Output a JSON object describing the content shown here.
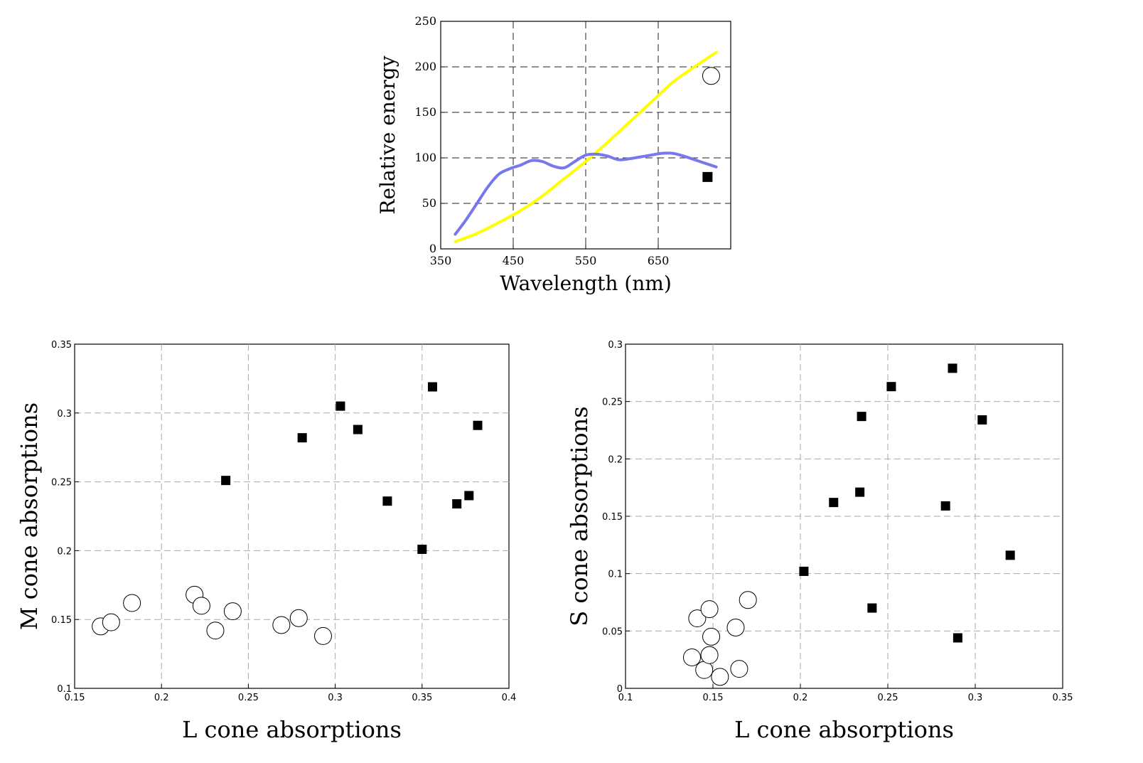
{
  "chart_data": [
    {
      "type": "line",
      "xlabel": "Wavelength (nm)",
      "ylabel": "Relative energy",
      "xlim": [
        350,
        750
      ],
      "ylim": [
        0,
        250
      ],
      "xticks": [
        "350",
        "450",
        "550",
        "650"
      ],
      "xtick_values": [
        350,
        450,
        550,
        650
      ],
      "yticks": [
        "0",
        "50",
        "100",
        "150",
        "200",
        "250"
      ],
      "ytick_values": [
        0,
        50,
        100,
        150,
        200,
        250
      ],
      "grid": true,
      "series": [
        {
          "color": "#ffff00",
          "x": [
            370,
            400,
            430,
            460,
            490,
            520,
            550,
            580,
            610,
            640,
            670,
            700,
            730
          ],
          "values": [
            8,
            17,
            29,
            42,
            58,
            77,
            96,
            117,
            139,
            161,
            183,
            200,
            216
          ]
        },
        {
          "color": "#7777ee",
          "x": [
            370,
            385,
            400,
            415,
            430,
            445,
            460,
            475,
            490,
            505,
            520,
            535,
            550,
            565,
            580,
            595,
            610,
            625,
            640,
            655,
            670,
            685,
            700,
            715,
            730
          ],
          "values": [
            16,
            32,
            50,
            68,
            82,
            88,
            92,
            97,
            96,
            91,
            89,
            96,
            103,
            104,
            102,
            98,
            99,
            101,
            103,
            105,
            105,
            102,
            98,
            94,
            90
          ]
        }
      ],
      "markers": [
        {
          "shape": "circle",
          "x": 723,
          "y": 190
        },
        {
          "shape": "square",
          "x": 718,
          "y": 79
        }
      ]
    },
    {
      "type": "scatter",
      "xlabel": "L cone absorptions",
      "ylabel": "M cone absorptions",
      "xlim": [
        0.15,
        0.4
      ],
      "ylim": [
        0.1,
        0.35
      ],
      "xticks": [
        "0.15",
        "0.2",
        "0.25",
        "0.3",
        "0.35",
        "0.4"
      ],
      "xtick_values": [
        0.15,
        0.2,
        0.25,
        0.3,
        0.35,
        0.4
      ],
      "yticks": [
        "0.1",
        "0.15",
        "0.2",
        "0.25",
        "0.3",
        "0.35"
      ],
      "ytick_values": [
        0.1,
        0.15,
        0.2,
        0.25,
        0.3,
        0.35
      ],
      "grid": true,
      "series": [
        {
          "marker": "circle",
          "points": [
            [
              0.165,
              0.145
            ],
            [
              0.171,
              0.148
            ],
            [
              0.183,
              0.162
            ],
            [
              0.219,
              0.168
            ],
            [
              0.223,
              0.16
            ],
            [
              0.231,
              0.142
            ],
            [
              0.241,
              0.156
            ],
            [
              0.269,
              0.146
            ],
            [
              0.279,
              0.151
            ],
            [
              0.293,
              0.138
            ]
          ]
        },
        {
          "marker": "square",
          "points": [
            [
              0.237,
              0.251
            ],
            [
              0.281,
              0.282
            ],
            [
              0.303,
              0.305
            ],
            [
              0.313,
              0.288
            ],
            [
              0.33,
              0.236
            ],
            [
              0.35,
              0.201
            ],
            [
              0.356,
              0.319
            ],
            [
              0.37,
              0.234
            ],
            [
              0.377,
              0.24
            ],
            [
              0.382,
              0.291
            ]
          ]
        }
      ]
    },
    {
      "type": "scatter",
      "xlabel": "L cone absorptions",
      "ylabel": "S cone absorptions",
      "xlim": [
        0.1,
        0.35
      ],
      "ylim": [
        0,
        0.3
      ],
      "xticks": [
        "0.1",
        "0.15",
        "0.2",
        "0.25",
        "0.3",
        "0.35"
      ],
      "xtick_values": [
        0.1,
        0.15,
        0.2,
        0.25,
        0.3,
        0.35
      ],
      "yticks": [
        "0",
        "0.05",
        "0.1",
        "0.15",
        "0.2",
        "0.25",
        "0.3"
      ],
      "ytick_values": [
        0,
        0.05,
        0.1,
        0.15,
        0.2,
        0.25,
        0.3
      ],
      "grid": true,
      "series": [
        {
          "marker": "circle",
          "points": [
            [
              0.138,
              0.027
            ],
            [
              0.141,
              0.061
            ],
            [
              0.145,
              0.016
            ],
            [
              0.148,
              0.069
            ],
            [
              0.149,
              0.045
            ],
            [
              0.148,
              0.029
            ],
            [
              0.154,
              0.01
            ],
            [
              0.163,
              0.053
            ],
            [
              0.165,
              0.017
            ],
            [
              0.17,
              0.077
            ]
          ]
        },
        {
          "marker": "square",
          "points": [
            [
              0.202,
              0.102
            ],
            [
              0.219,
              0.162
            ],
            [
              0.234,
              0.171
            ],
            [
              0.235,
              0.237
            ],
            [
              0.241,
              0.07
            ],
            [
              0.252,
              0.263
            ],
            [
              0.283,
              0.159
            ],
            [
              0.287,
              0.279
            ],
            [
              0.29,
              0.044
            ],
            [
              0.304,
              0.234
            ],
            [
              0.32,
              0.116
            ]
          ]
        }
      ]
    }
  ]
}
